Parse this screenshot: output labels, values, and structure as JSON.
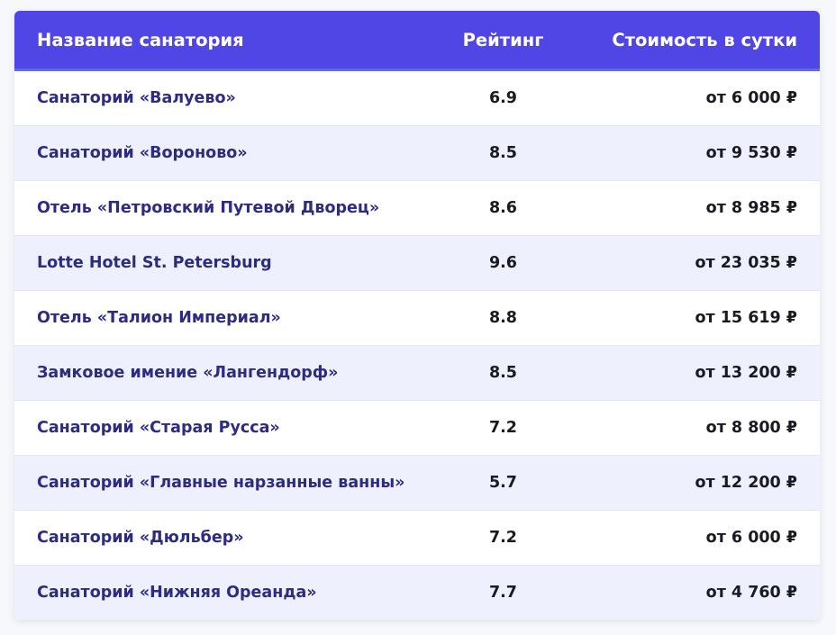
{
  "colors": {
    "header_bg": "#4f46e5",
    "header_text": "#ffffff",
    "name_text": "#2e2c7e",
    "value_text": "#1a1a22",
    "row_alt_bg": "#eef1fd"
  },
  "table": {
    "headers": {
      "name": "Название санатория",
      "rating": "Рейтинг",
      "price": "Стоимость в сутки"
    },
    "rows": [
      {
        "name": "Санаторий «Валуево»",
        "rating": "6.9",
        "price": "от 6 000 ₽"
      },
      {
        "name": "Санаторий «Вороново»",
        "rating": "8.5",
        "price": "от 9 530 ₽"
      },
      {
        "name": "Отель «Петровский Путевой Дворец»",
        "rating": "8.6",
        "price": "от 8 985 ₽"
      },
      {
        "name": "Lotte Hotel St. Petersburg",
        "rating": "9.6",
        "price": "от 23 035 ₽"
      },
      {
        "name": "Отель «Талион Империал»",
        "rating": "8.8",
        "price": "от 15 619 ₽"
      },
      {
        "name": "Замковое имение «Лангендорф»",
        "rating": "8.5",
        "price": "от 13 200 ₽"
      },
      {
        "name": "Санаторий «Старая Русса»",
        "rating": "7.2",
        "price": "от 8 800 ₽"
      },
      {
        "name": "Санаторий «Главные нарзанные ванны»",
        "rating": "5.7",
        "price": "от 12 200 ₽"
      },
      {
        "name": "Санаторий «Дюльбер»",
        "rating": "7.2",
        "price": "от 6 000 ₽"
      },
      {
        "name": "Санаторий «Нижняя Ореанда»",
        "rating": "7.7",
        "price": "от 4 760 ₽"
      }
    ]
  }
}
